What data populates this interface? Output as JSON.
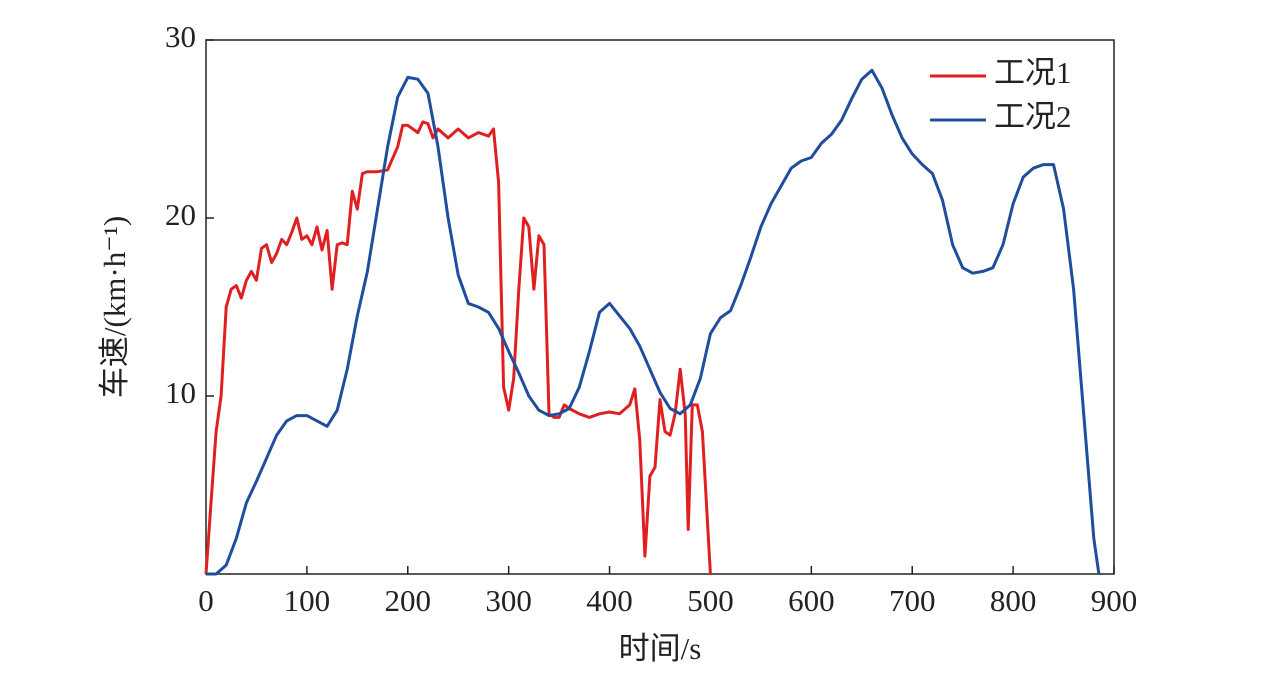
{
  "chart_data": {
    "type": "line",
    "xlabel": "时间/s",
    "ylabel": "车速/(km·h⁻¹)",
    "xlim": [
      0,
      900
    ],
    "ylim": [
      0,
      30
    ],
    "xticks": [
      0,
      100,
      200,
      300,
      400,
      500,
      600,
      700,
      800,
      900
    ],
    "yticks": [
      10,
      20,
      30
    ],
    "legend": "upper right",
    "series": [
      {
        "name": "工况1",
        "color": "#e02020",
        "x": [
          0,
          5,
          10,
          15,
          20,
          25,
          30,
          35,
          40,
          45,
          50,
          55,
          60,
          65,
          70,
          75,
          80,
          85,
          90,
          95,
          100,
          105,
          110,
          115,
          120,
          125,
          130,
          135,
          140,
          145,
          150,
          155,
          160,
          170,
          180,
          190,
          195,
          200,
          210,
          215,
          220,
          225,
          230,
          240,
          250,
          260,
          270,
          280,
          285,
          290,
          295,
          300,
          305,
          310,
          315,
          320,
          325,
          330,
          335,
          340,
          345,
          350,
          355,
          360,
          370,
          380,
          390,
          400,
          410,
          420,
          425,
          430,
          435,
          440,
          445,
          450,
          455,
          460,
          465,
          470,
          475,
          478,
          482,
          487,
          492,
          495,
          500
        ],
        "values": [
          0,
          4,
          8,
          10,
          15,
          16,
          16.2,
          15.5,
          16.5,
          17,
          16.5,
          18.3,
          18.5,
          17.5,
          18,
          18.8,
          18.5,
          19.2,
          20,
          18.8,
          19,
          18.5,
          19.5,
          18.2,
          19.3,
          16,
          18.5,
          18.6,
          18.5,
          21.5,
          20.5,
          22.5,
          22.6,
          22.6,
          22.7,
          24,
          25.2,
          25.2,
          24.8,
          25.4,
          25.3,
          24.5,
          25,
          24.5,
          25,
          24.5,
          24.8,
          24.6,
          25,
          22,
          10.5,
          9.2,
          11,
          16,
          20,
          19.5,
          16,
          19,
          18.5,
          9,
          8.8,
          8.8,
          9.5,
          9.3,
          9,
          8.8,
          9,
          9.1,
          9,
          9.5,
          10.4,
          7.5,
          1,
          5.5,
          6,
          9.8,
          8,
          7.8,
          9,
          11.5,
          9,
          2.5,
          9.5,
          9.5,
          8,
          5,
          0
        ]
      },
      {
        "name": "工况2",
        "color": "#1f4e9c",
        "x": [
          0,
          10,
          20,
          30,
          40,
          50,
          60,
          70,
          80,
          90,
          100,
          110,
          120,
          130,
          140,
          150,
          160,
          170,
          180,
          190,
          200,
          210,
          220,
          230,
          240,
          250,
          260,
          270,
          280,
          290,
          300,
          310,
          320,
          330,
          340,
          350,
          360,
          370,
          380,
          390,
          400,
          410,
          420,
          430,
          440,
          450,
          460,
          470,
          480,
          490,
          500,
          510,
          520,
          530,
          540,
          550,
          560,
          570,
          580,
          590,
          600,
          610,
          620,
          630,
          640,
          650,
          660,
          670,
          680,
          690,
          700,
          710,
          720,
          730,
          740,
          750,
          760,
          770,
          780,
          790,
          800,
          810,
          820,
          830,
          840,
          850,
          860,
          870,
          880,
          885
        ],
        "values": [
          0,
          0,
          0.5,
          2,
          4,
          5.2,
          6.5,
          7.8,
          8.6,
          8.9,
          8.9,
          8.6,
          8.3,
          9.2,
          11.5,
          14.5,
          17,
          20.5,
          24,
          26.8,
          27.9,
          27.8,
          27,
          24,
          20,
          16.8,
          15.2,
          15,
          14.7,
          13.8,
          12.5,
          11.3,
          10,
          9.2,
          8.9,
          9,
          9.3,
          10.5,
          12.5,
          14.7,
          15.2,
          14.5,
          13.8,
          12.8,
          11.5,
          10.2,
          9.3,
          9,
          9.5,
          11,
          13.5,
          14.4,
          14.8,
          16.2,
          17.8,
          19.5,
          20.8,
          21.8,
          22.8,
          23.2,
          23.4,
          24.2,
          24.7,
          25.5,
          26.7,
          27.8,
          28.3,
          27.3,
          25.8,
          24.5,
          23.6,
          23,
          22.5,
          21,
          18.5,
          17.2,
          16.9,
          17,
          17.2,
          18.5,
          20.8,
          22.3,
          22.8,
          23,
          23,
          20.5,
          16,
          9,
          2,
          0
        ]
      }
    ]
  }
}
